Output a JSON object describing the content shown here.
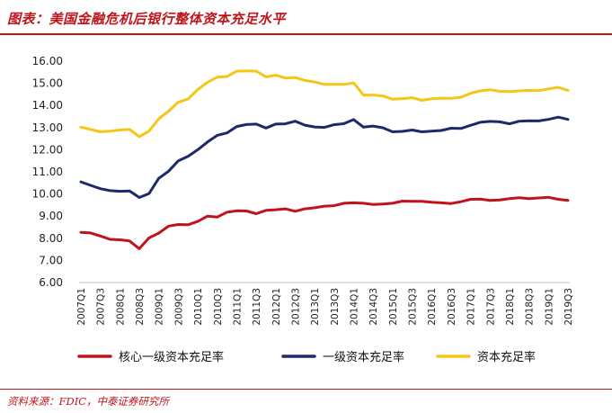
{
  "header": {
    "title": "图表：美国金融危机后银行整体资本充足水平",
    "source": "资料来源：FDIC，中泰证券研究所"
  },
  "chart_data": {
    "type": "line",
    "title": "图表：美国金融危机后银行整体资本充足水平",
    "xlabel": "",
    "ylabel": "",
    "ylim": [
      6.0,
      16.0
    ],
    "yticks": [
      "16.00",
      "15.00",
      "14.00",
      "13.00",
      "12.00",
      "11.00",
      "10.00",
      "9.00",
      "8.00",
      "7.00",
      "6.00"
    ],
    "x": [
      "2007Q1",
      "2007Q2",
      "2007Q3",
      "2007Q4",
      "2008Q1",
      "2008Q2",
      "2008Q3",
      "2008Q4",
      "2009Q1",
      "2009Q2",
      "2009Q3",
      "2009Q4",
      "2010Q1",
      "2010Q2",
      "2010Q3",
      "2010Q4",
      "2011Q1",
      "2011Q2",
      "2011Q3",
      "2011Q4",
      "2012Q1",
      "2012Q2",
      "2012Q3",
      "2012Q4",
      "2013Q1",
      "2013Q2",
      "2013Q3",
      "2013Q4",
      "2014Q1",
      "2014Q2",
      "2014Q3",
      "2014Q4",
      "2015Q1",
      "2015Q2",
      "2015Q3",
      "2015Q4",
      "2016Q1",
      "2016Q2",
      "2016Q3",
      "2016Q4",
      "2017Q1",
      "2017Q2",
      "2017Q3",
      "2017Q4",
      "2018Q1",
      "2018Q2",
      "2018Q3",
      "2018Q4",
      "2019Q1",
      "2019Q2",
      "2019Q3"
    ],
    "xtick_labels": [
      "2007Q1",
      "2007Q3",
      "2008Q1",
      "2008Q3",
      "2009Q1",
      "2009Q3",
      "2010Q1",
      "2010Q3",
      "2011Q1",
      "2011Q3",
      "2012Q1",
      "2012Q3",
      "2013Q1",
      "2013Q3",
      "2014Q1",
      "2014Q3",
      "2015Q1",
      "2015Q3",
      "2016Q1",
      "2016Q3",
      "2017Q1",
      "2017Q3",
      "2018Q1",
      "2018Q3",
      "2019Q1",
      "2019Q3"
    ],
    "series": [
      {
        "name": "核心一级资本充足率",
        "color": "#c0141b",
        "values": [
          8.27,
          8.24,
          8.1,
          7.95,
          7.93,
          7.88,
          7.53,
          8.02,
          8.23,
          8.55,
          8.62,
          8.61,
          8.76,
          9.0,
          8.96,
          9.18,
          9.24,
          9.23,
          9.11,
          9.26,
          9.29,
          9.33,
          9.22,
          9.33,
          9.38,
          9.45,
          9.47,
          9.58,
          9.6,
          9.58,
          9.53,
          9.55,
          9.58,
          9.68,
          9.67,
          9.67,
          9.63,
          9.6,
          9.57,
          9.65,
          9.76,
          9.77,
          9.71,
          9.73,
          9.79,
          9.83,
          9.79,
          9.82,
          9.85,
          9.76,
          9.71
        ]
      },
      {
        "name": "一级资本充足率",
        "color": "#1c2a6b",
        "values": [
          10.55,
          10.39,
          10.24,
          10.15,
          10.12,
          10.14,
          9.84,
          10.02,
          10.71,
          11.03,
          11.5,
          11.7,
          12.0,
          12.35,
          12.65,
          12.76,
          13.05,
          13.14,
          13.16,
          12.98,
          13.16,
          13.17,
          13.29,
          13.11,
          13.03,
          13.01,
          13.13,
          13.18,
          13.36,
          13.02,
          13.07,
          12.99,
          12.81,
          12.83,
          12.89,
          12.81,
          12.84,
          12.87,
          12.97,
          12.96,
          13.1,
          13.24,
          13.28,
          13.26,
          13.17,
          13.29,
          13.31,
          13.3,
          13.37,
          13.47,
          13.37
        ]
      },
      {
        "name": "资本充足率",
        "color": "#f5c518",
        "values": [
          13.02,
          12.92,
          12.81,
          12.84,
          12.89,
          12.92,
          12.59,
          12.84,
          13.4,
          13.74,
          14.15,
          14.29,
          14.72,
          15.05,
          15.28,
          15.31,
          15.55,
          15.56,
          15.55,
          15.29,
          15.37,
          15.24,
          15.26,
          15.13,
          15.06,
          14.95,
          14.95,
          14.95,
          15.02,
          14.47,
          14.47,
          14.43,
          14.28,
          14.31,
          14.35,
          14.23,
          14.3,
          14.33,
          14.32,
          14.37,
          14.55,
          14.66,
          14.71,
          14.64,
          14.63,
          14.66,
          14.68,
          14.67,
          14.75,
          14.82,
          14.68
        ]
      }
    ],
    "legend_position": "bottom"
  }
}
